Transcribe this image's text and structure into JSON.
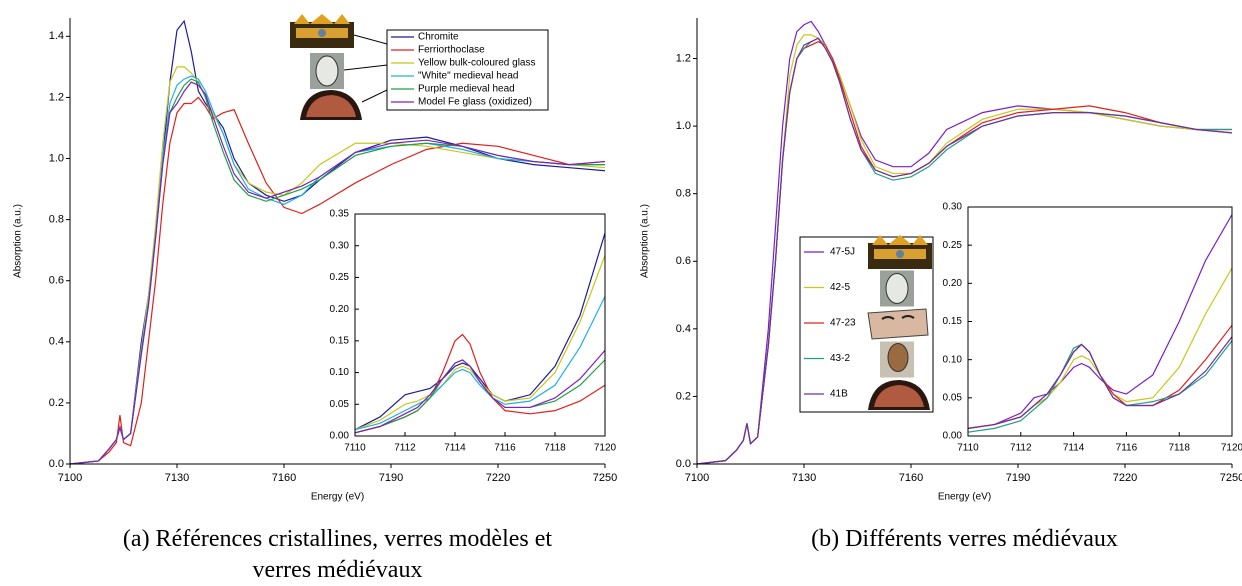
{
  "chart_data": [
    {
      "type": "line",
      "caption": [
        "(a) Références cristallines, verres modèles et",
        "verres médiévaux"
      ],
      "x_label": "Energy (eV)",
      "y_label": "Absorption (a.u.)",
      "xlim": [
        7100,
        7250
      ],
      "xticks": [
        7100,
        7130,
        7160,
        7190,
        7220,
        7250
      ],
      "ylim": [
        0,
        1.46
      ],
      "yticks": [
        {
          "value": 0,
          "label": "0.0"
        },
        0.2,
        0.4,
        0.6,
        0.8,
        {
          "value": 1,
          "label": "1.0"
        },
        1.2,
        1.4
      ],
      "legend": "top",
      "x": [
        7100,
        7108,
        7111,
        7113,
        7114,
        7115,
        7117,
        7120,
        7122,
        7124,
        7126,
        7128,
        7130,
        7132,
        7134,
        7136,
        7138,
        7140,
        7143,
        7146,
        7150,
        7155,
        7160,
        7165,
        7170,
        7180,
        7190,
        7200,
        7210,
        7220,
        7230,
        7240,
        7250
      ],
      "series": [
        {
          "name": "Chromite",
          "color": "#1c1c9c",
          "values": [
            0,
            0.01,
            0.05,
            0.08,
            0.12,
            0.08,
            0.1,
            0.4,
            0.55,
            0.75,
            1.0,
            1.25,
            1.42,
            1.45,
            1.35,
            1.22,
            1.18,
            1.15,
            1.1,
            1.0,
            0.92,
            0.88,
            0.86,
            0.88,
            0.93,
            1.02,
            1.06,
            1.07,
            1.04,
            1.0,
            0.98,
            0.97,
            0.96
          ]
        },
        {
          "name": "Ferriorthoclase",
          "color": "#e0201c",
          "values": [
            0,
            0.01,
            0.04,
            0.07,
            0.16,
            0.07,
            0.06,
            0.2,
            0.4,
            0.6,
            0.85,
            1.05,
            1.15,
            1.18,
            1.18,
            1.2,
            1.17,
            1.13,
            1.15,
            1.16,
            1.05,
            0.92,
            0.84,
            0.82,
            0.85,
            0.92,
            0.98,
            1.03,
            1.05,
            1.04,
            1.01,
            0.98,
            0.99
          ]
        },
        {
          "name": "Yellow bulk-coloured glass",
          "color": "#c8c818",
          "values": [
            0,
            0.01,
            0.05,
            0.08,
            0.12,
            0.08,
            0.1,
            0.38,
            0.55,
            0.78,
            1.05,
            1.25,
            1.3,
            1.3,
            1.28,
            1.25,
            1.2,
            1.15,
            1.08,
            0.98,
            0.92,
            0.89,
            0.88,
            0.92,
            0.98,
            1.05,
            1.05,
            1.04,
            1.02,
            1.0,
            0.99,
            0.98,
            0.97
          ]
        },
        {
          "name": "\"White\" medieval head",
          "color": "#20b0e8",
          "values": [
            0,
            0.01,
            0.05,
            0.08,
            0.12,
            0.08,
            0.1,
            0.37,
            0.53,
            0.75,
            1.0,
            1.18,
            1.24,
            1.26,
            1.27,
            1.26,
            1.22,
            1.16,
            1.08,
            0.98,
            0.9,
            0.87,
            0.85,
            0.88,
            0.94,
            1.02,
            1.04,
            1.05,
            1.03,
            1.0,
            0.99,
            0.98,
            0.98
          ]
        },
        {
          "name": "Purple medieval head",
          "color": "#20a040",
          "values": [
            0,
            0.01,
            0.05,
            0.08,
            0.12,
            0.08,
            0.1,
            0.36,
            0.52,
            0.74,
            0.98,
            1.15,
            1.2,
            1.24,
            1.26,
            1.25,
            1.2,
            1.12,
            1.02,
            0.93,
            0.88,
            0.86,
            0.88,
            0.9,
            0.93,
            1.01,
            1.04,
            1.05,
            1.04,
            1.01,
            0.99,
            0.98,
            0.98
          ]
        },
        {
          "name": "Model Fe glass (oxidized)",
          "color": "#8020c0",
          "values": [
            0,
            0.01,
            0.05,
            0.08,
            0.12,
            0.08,
            0.1,
            0.36,
            0.52,
            0.74,
            0.98,
            1.15,
            1.18,
            1.22,
            1.25,
            1.24,
            1.21,
            1.14,
            1.04,
            0.95,
            0.89,
            0.87,
            0.89,
            0.91,
            0.94,
            1.02,
            1.05,
            1.06,
            1.04,
            1.01,
            0.99,
            0.98,
            0.99
          ]
        }
      ]
    },
    {
      "type": "line",
      "xlim": [
        7110,
        7120
      ],
      "xticks": [
        7110,
        7112,
        7114,
        7116,
        7118,
        7120
      ],
      "ylim": [
        0,
        0.35
      ],
      "yticks": [
        {
          "value": 0,
          "label": "0.00"
        },
        0.05,
        {
          "value": 0.1,
          "label": "0.10"
        },
        0.15,
        {
          "value": 0.2,
          "label": "0.20"
        },
        0.25,
        {
          "value": 0.3,
          "label": "0.30"
        },
        0.35
      ],
      "x": [
        7110,
        7111,
        7112,
        7112.5,
        7113,
        7113.5,
        7114,
        7114.3,
        7114.6,
        7115,
        7115.5,
        7116,
        7117,
        7118,
        7119,
        7120
      ],
      "series": [
        {
          "color": "#1c1c9c",
          "values": [
            0.01,
            0.03,
            0.065,
            0.07,
            0.075,
            0.09,
            0.11,
            0.115,
            0.11,
            0.09,
            0.065,
            0.055,
            0.065,
            0.11,
            0.19,
            0.32
          ]
        },
        {
          "color": "#e0201c",
          "values": [
            0.005,
            0.015,
            0.03,
            0.04,
            0.06,
            0.1,
            0.15,
            0.16,
            0.145,
            0.1,
            0.06,
            0.04,
            0.035,
            0.04,
            0.055,
            0.08
          ]
        },
        {
          "color": "#c8c818",
          "values": [
            0.01,
            0.025,
            0.05,
            0.055,
            0.065,
            0.08,
            0.105,
            0.11,
            0.105,
            0.085,
            0.065,
            0.055,
            0.06,
            0.1,
            0.18,
            0.285
          ]
        },
        {
          "color": "#20b0e8",
          "values": [
            0.01,
            0.02,
            0.04,
            0.05,
            0.06,
            0.08,
            0.1,
            0.105,
            0.1,
            0.08,
            0.06,
            0.05,
            0.055,
            0.08,
            0.14,
            0.22
          ]
        },
        {
          "color": "#20a040",
          "values": [
            0.005,
            0.015,
            0.03,
            0.04,
            0.06,
            0.09,
            0.115,
            0.12,
            0.11,
            0.085,
            0.06,
            0.045,
            0.045,
            0.055,
            0.08,
            0.12
          ]
        },
        {
          "color": "#8020c0",
          "values": [
            0.005,
            0.015,
            0.035,
            0.045,
            0.065,
            0.09,
            0.115,
            0.12,
            0.11,
            0.085,
            0.06,
            0.045,
            0.045,
            0.06,
            0.09,
            0.135
          ]
        }
      ]
    },
    {
      "type": "line",
      "caption": [
        "(b) Différents verres médiévaux"
      ],
      "x_label": "Energy (eV)",
      "y_label": "Absorption (a.u.)",
      "xlim": [
        7100,
        7250
      ],
      "xticks": [
        7100,
        7130,
        7160,
        7190,
        7220,
        7250
      ],
      "ylim": [
        0,
        1.32
      ],
      "yticks": [
        {
          "value": 0,
          "label": "0.0"
        },
        0.2,
        0.4,
        0.6,
        0.8,
        {
          "value": 1,
          "label": "1.0"
        },
        1.2
      ],
      "legend": "left",
      "x": [
        7100,
        7108,
        7111,
        7113,
        7114,
        7115,
        7117,
        7120,
        7122,
        7124,
        7126,
        7128,
        7130,
        7132,
        7134,
        7136,
        7138,
        7140,
        7143,
        7146,
        7150,
        7155,
        7160,
        7165,
        7170,
        7180,
        7190,
        7200,
        7210,
        7220,
        7230,
        7240,
        7250
      ],
      "series": [
        {
          "name": "47-5J",
          "color": "#7a1fc8",
          "values": [
            0,
            0.01,
            0.04,
            0.07,
            0.12,
            0.06,
            0.08,
            0.4,
            0.7,
            1.0,
            1.2,
            1.28,
            1.3,
            1.31,
            1.28,
            1.24,
            1.2,
            1.15,
            1.06,
            0.97,
            0.9,
            0.88,
            0.88,
            0.92,
            0.99,
            1.04,
            1.06,
            1.05,
            1.04,
            1.02,
            1.0,
            0.99,
            0.98
          ]
        },
        {
          "name": "42-5",
          "color": "#c8c818",
          "values": [
            0,
            0.01,
            0.04,
            0.07,
            0.12,
            0.06,
            0.08,
            0.35,
            0.6,
            0.9,
            1.15,
            1.24,
            1.27,
            1.27,
            1.26,
            1.24,
            1.2,
            1.15,
            1.06,
            0.96,
            0.88,
            0.86,
            0.86,
            0.89,
            0.95,
            1.02,
            1.05,
            1.05,
            1.04,
            1.02,
            1.0,
            0.99,
            0.98
          ]
        },
        {
          "name": "47-23",
          "color": "#e0201c",
          "values": [
            0,
            0.01,
            0.04,
            0.07,
            0.12,
            0.06,
            0.08,
            0.35,
            0.6,
            0.9,
            1.1,
            1.2,
            1.23,
            1.24,
            1.25,
            1.24,
            1.2,
            1.14,
            1.04,
            0.94,
            0.87,
            0.85,
            0.86,
            0.89,
            0.94,
            1.01,
            1.04,
            1.05,
            1.06,
            1.04,
            1.01,
            0.99,
            0.99
          ]
        },
        {
          "name": "43-2",
          "color": "#20a080",
          "values": [
            0,
            0.01,
            0.04,
            0.07,
            0.12,
            0.06,
            0.08,
            0.35,
            0.6,
            0.9,
            1.1,
            1.2,
            1.23,
            1.25,
            1.26,
            1.23,
            1.19,
            1.13,
            1.02,
            0.93,
            0.86,
            0.84,
            0.85,
            0.88,
            0.93,
            1.0,
            1.03,
            1.04,
            1.04,
            1.03,
            1.01,
            0.99,
            0.99
          ]
        },
        {
          "name": "41B",
          "color": "#7030a0",
          "values": [
            0,
            0.01,
            0.04,
            0.07,
            0.12,
            0.06,
            0.08,
            0.35,
            0.6,
            0.9,
            1.1,
            1.2,
            1.24,
            1.25,
            1.26,
            1.23,
            1.19,
            1.13,
            1.02,
            0.93,
            0.87,
            0.85,
            0.86,
            0.89,
            0.94,
            1.0,
            1.03,
            1.04,
            1.04,
            1.03,
            1.01,
            0.99,
            0.98
          ]
        }
      ]
    },
    {
      "type": "line",
      "xlim": [
        7110,
        7120
      ],
      "xticks": [
        7110,
        7112,
        7114,
        7116,
        7118,
        7120
      ],
      "ylim": [
        0,
        0.3
      ],
      "yticks": [
        {
          "value": 0,
          "label": "0.00"
        },
        0.05,
        {
          "value": 0.1,
          "label": "0.10"
        },
        0.15,
        {
          "value": 0.2,
          "label": "0.20"
        },
        0.25,
        {
          "value": 0.3,
          "label": "0.30"
        }
      ],
      "x": [
        7110,
        7111,
        7112,
        7112.5,
        7113,
        7113.5,
        7114,
        7114.3,
        7114.6,
        7115,
        7115.5,
        7116,
        7117,
        7118,
        7119,
        7120
      ],
      "series": [
        {
          "color": "#7a1fc8",
          "values": [
            0.01,
            0.015,
            0.03,
            0.05,
            0.055,
            0.07,
            0.09,
            0.095,
            0.09,
            0.075,
            0.06,
            0.055,
            0.08,
            0.15,
            0.23,
            0.29
          ]
        },
        {
          "color": "#c8c818",
          "values": [
            0.01,
            0.015,
            0.025,
            0.04,
            0.05,
            0.07,
            0.1,
            0.105,
            0.1,
            0.08,
            0.055,
            0.045,
            0.05,
            0.09,
            0.16,
            0.22
          ]
        },
        {
          "color": "#e0201c",
          "values": [
            0.01,
            0.015,
            0.025,
            0.04,
            0.055,
            0.08,
            0.11,
            0.12,
            0.11,
            0.08,
            0.055,
            0.04,
            0.04,
            0.06,
            0.1,
            0.145
          ]
        },
        {
          "color": "#20a080",
          "values": [
            0.005,
            0.01,
            0.02,
            0.035,
            0.05,
            0.08,
            0.115,
            0.12,
            0.11,
            0.08,
            0.05,
            0.04,
            0.045,
            0.055,
            0.08,
            0.125
          ]
        },
        {
          "color": "#7030a0",
          "values": [
            0.01,
            0.015,
            0.025,
            0.04,
            0.055,
            0.08,
            0.11,
            0.12,
            0.11,
            0.08,
            0.05,
            0.04,
            0.04,
            0.055,
            0.085,
            0.13
          ]
        }
      ]
    }
  ]
}
